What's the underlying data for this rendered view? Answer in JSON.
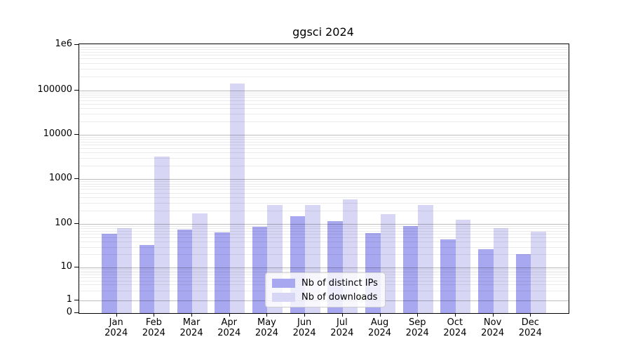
{
  "title": "ggsci 2024",
  "chart_data": {
    "type": "bar",
    "title": "ggsci 2024",
    "xlabel": "",
    "ylabel": "",
    "yscale": "log",
    "ylim": [
      0,
      1000000
    ],
    "grid": true,
    "legend_position": "lower center",
    "categories": [
      "Jan",
      "Feb",
      "Mar",
      "Apr",
      "May",
      "Jun",
      "Jul",
      "Aug",
      "Sep",
      "Oct",
      "Nov",
      "Dec"
    ],
    "category_year": "2024",
    "y_ticks": [
      {
        "label": "1e6",
        "value": 1000000
      },
      {
        "label": "100000",
        "value": 100000
      },
      {
        "label": "10000",
        "value": 10000
      },
      {
        "label": "1000",
        "value": 1000
      },
      {
        "label": "100",
        "value": 100
      },
      {
        "label": "10",
        "value": 10
      },
      {
        "label": "1",
        "value": 1
      },
      {
        "label": "0",
        "value": 0
      }
    ],
    "series": [
      {
        "name": "Nb of distinct IPs",
        "color": "#a8a8f0",
        "values": [
          60,
          33,
          75,
          65,
          88,
          150,
          115,
          62,
          90,
          45,
          26,
          20
        ]
      },
      {
        "name": "Nb of downloads",
        "color": "#d7d7f5",
        "values": [
          82,
          3200,
          175,
          140000,
          270,
          270,
          360,
          170,
          270,
          125,
          82,
          68
        ]
      }
    ]
  },
  "colors": {
    "background": "#ffffff",
    "spine": "#000000",
    "grid_major": "rgba(0,0,0,0.26)",
    "grid_minor": "rgba(0,0,0,0.08)",
    "legend_border": "#cccccc",
    "legend_background": "rgba(255,255,255,0.8)"
  }
}
